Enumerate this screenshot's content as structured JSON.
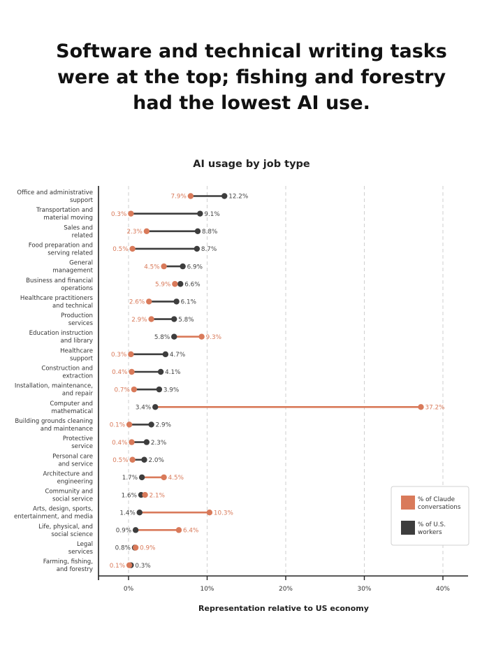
{
  "headline": {
    "lines": [
      "Software and technical writing tasks",
      "were at the top; fishing and forestry",
      "had the lowest AI use."
    ]
  },
  "colors": {
    "claude": "#d97a5a",
    "workers": "#3d3d3d",
    "grid": "#cfcfcf",
    "axis": "#222222"
  },
  "chart_data": {
    "type": "dumbbell",
    "title": "AI usage by job type",
    "xlabel": "Representation relative to US economy",
    "ylabel": "",
    "xlim": [
      -4,
      43.5
    ],
    "xticks": [
      0,
      10,
      20,
      30,
      40
    ],
    "xtick_labels": [
      "0%",
      "10%",
      "20%",
      "30%",
      "40%"
    ],
    "grid": "vertical dashed",
    "legend_position": "bottom-right",
    "series": [
      {
        "name": "% of Claude conversations",
        "color_key": "claude"
      },
      {
        "name": "% of U.S. workers",
        "color_key": "workers"
      }
    ],
    "categories": [
      [
        "Office and administrative",
        "support"
      ],
      [
        "Transportation and",
        "material moving"
      ],
      [
        "Sales and",
        "related"
      ],
      [
        "Food preparation and",
        "serving related"
      ],
      [
        "General",
        "management"
      ],
      [
        "Business and financial",
        "operations"
      ],
      [
        "Healthcare practitioners",
        "and technical"
      ],
      [
        "Production",
        "services"
      ],
      [
        "Education instruction",
        "and library"
      ],
      [
        "Healthcare",
        "support"
      ],
      [
        "Construction and",
        "extraction"
      ],
      [
        "Installation, maintenance,",
        "and repair"
      ],
      [
        "Computer and",
        "mathematical"
      ],
      [
        "Building grounds cleaning",
        "and maintenance"
      ],
      [
        "Protective",
        "service"
      ],
      [
        "Personal care",
        "and service"
      ],
      [
        "Architecture and",
        "engineering"
      ],
      [
        "Community and",
        "social service"
      ],
      [
        "Arts, design, sports,",
        "entertainment, and media"
      ],
      [
        "Life, physical, and",
        "social science"
      ],
      [
        "Legal",
        "services"
      ],
      [
        "Farming, fishing,",
        "and forestry"
      ]
    ],
    "claude": [
      7.9,
      0.3,
      2.3,
      0.5,
      4.5,
      5.9,
      2.6,
      2.9,
      9.3,
      0.3,
      0.4,
      0.7,
      37.2,
      0.1,
      0.4,
      0.5,
      4.5,
      2.1,
      10.3,
      6.4,
      0.9,
      0.1
    ],
    "workers": [
      12.2,
      9.1,
      8.8,
      8.7,
      6.9,
      6.6,
      6.1,
      5.8,
      5.8,
      4.7,
      4.1,
      3.9,
      3.4,
      2.9,
      2.3,
      2.0,
      1.7,
      1.6,
      1.4,
      0.9,
      0.8,
      0.3
    ]
  },
  "legend": {
    "items": [
      {
        "line1": "% of Claude",
        "line2": "conversations",
        "color_key": "claude"
      },
      {
        "line1": "% of U.S.",
        "line2": "workers",
        "color_key": "workers"
      }
    ]
  }
}
